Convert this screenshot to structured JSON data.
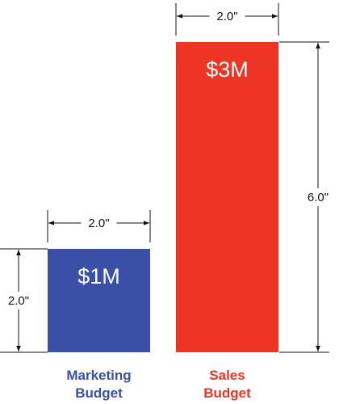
{
  "chart_data": {
    "type": "bar",
    "categories": [
      "Marketing Budget",
      "Sales Budget"
    ],
    "category_lines": [
      [
        "Marketing",
        "Budget"
      ],
      [
        "Sales",
        "Budget"
      ]
    ],
    "values": [
      1,
      3
    ],
    "value_labels": [
      "$1M",
      "$3M"
    ],
    "colors": [
      "#3a50a6",
      "#ee3424"
    ],
    "width_labels": [
      "2.0\"",
      "2.0\""
    ],
    "height_labels": [
      "2.0\"",
      "6.0\""
    ],
    "height_axis_sides": [
      "left",
      "right"
    ],
    "title": "",
    "xlabel": "",
    "ylabel": "",
    "grid": false,
    "legend": "none"
  }
}
